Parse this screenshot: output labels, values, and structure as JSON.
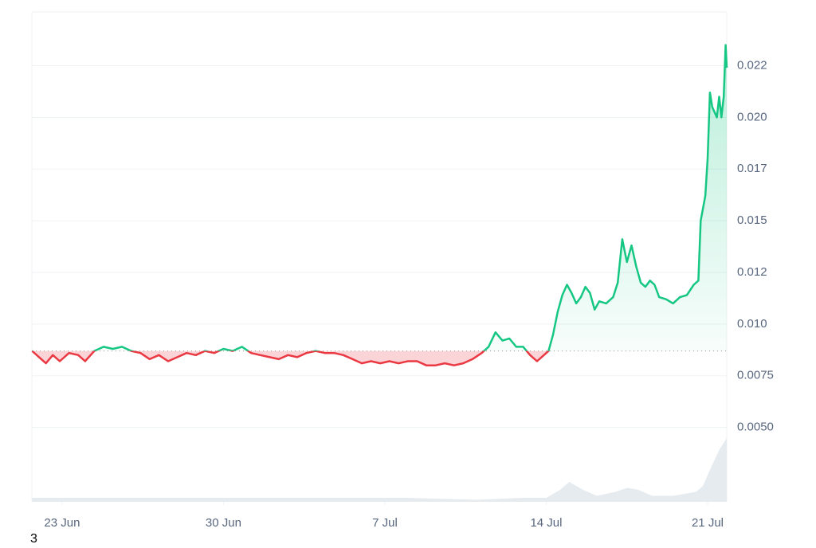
{
  "chart_data": {
    "type": "line",
    "x": [
      -1.3,
      -1.0,
      -0.7,
      -0.4,
      -0.1,
      0.3,
      0.7,
      1.0,
      1.4,
      1.8,
      2.2,
      2.6,
      3.0,
      3.4,
      3.8,
      4.2,
      4.6,
      5.0,
      5.4,
      5.8,
      6.2,
      6.6,
      7.0,
      7.4,
      7.8,
      8.2,
      8.6,
      9.0,
      9.4,
      9.8,
      10.2,
      10.6,
      11.0,
      11.4,
      11.8,
      12.2,
      12.6,
      13.0,
      13.4,
      13.8,
      14.2,
      14.6,
      15.0,
      15.4,
      15.8,
      16.2,
      16.6,
      17.0,
      17.4,
      17.8,
      18.2,
      18.5,
      18.8,
      19.1,
      19.4,
      19.7,
      20.0,
      20.3,
      20.6,
      20.9,
      21.1,
      21.3,
      21.5,
      21.7,
      21.9,
      22.1,
      22.3,
      22.5,
      22.7,
      22.9,
      23.1,
      23.3,
      23.6,
      23.9,
      24.1,
      24.3,
      24.5,
      24.7,
      24.9,
      25.1,
      25.3,
      25.5,
      25.7,
      25.9,
      26.2,
      26.5,
      26.8,
      27.1,
      27.4,
      27.6,
      27.7,
      27.9,
      28.0,
      28.1,
      28.2,
      28.4,
      28.5,
      28.6,
      28.7,
      28.78,
      28.83
    ],
    "series": [
      {
        "colors": {
          "up": "#16c784",
          "down": "#ea3943"
        },
        "values": [
          0.0087,
          0.0084,
          0.0081,
          0.0085,
          0.0082,
          0.0086,
          0.0085,
          0.0082,
          0.0087,
          0.0089,
          0.0088,
          0.0089,
          0.0087,
          0.0086,
          0.0083,
          0.0085,
          0.0082,
          0.0084,
          0.0086,
          0.0085,
          0.0087,
          0.0086,
          0.0088,
          0.0087,
          0.0089,
          0.0086,
          0.0085,
          0.0084,
          0.0083,
          0.0085,
          0.0084,
          0.0086,
          0.0087,
          0.0086,
          0.0086,
          0.0085,
          0.0083,
          0.0081,
          0.0082,
          0.0081,
          0.0082,
          0.0081,
          0.0082,
          0.0082,
          0.008,
          0.008,
          0.0081,
          0.008,
          0.0081,
          0.0083,
          0.0086,
          0.0089,
          0.0096,
          0.0092,
          0.0093,
          0.0089,
          0.0089,
          0.0085,
          0.0082,
          0.0085,
          0.0087,
          0.0095,
          0.0106,
          0.0114,
          0.0119,
          0.0115,
          0.011,
          0.0113,
          0.0118,
          0.0115,
          0.0107,
          0.0111,
          0.011,
          0.0113,
          0.012,
          0.0141,
          0.013,
          0.0138,
          0.0128,
          0.012,
          0.0118,
          0.0121,
          0.0119,
          0.0113,
          0.0112,
          0.011,
          0.0113,
          0.0114,
          0.0119,
          0.0121,
          0.015,
          0.0162,
          0.018,
          0.0212,
          0.0205,
          0.02,
          0.021,
          0.02,
          0.021,
          0.0235,
          0.0224
        ]
      }
    ],
    "baseline": 0.0087,
    "volume": {
      "x": [
        -1.3,
        5,
        10,
        15,
        18,
        20,
        21,
        21.6,
        22,
        22.6,
        23.2,
        24,
        24.5,
        25,
        25.6,
        26.5,
        27.5,
        27.8,
        28.1,
        28.5,
        28.83
      ],
      "values": [
        2,
        2,
        2,
        2,
        1,
        2,
        2,
        6,
        10,
        6,
        3,
        5,
        7,
        6,
        3,
        3,
        5,
        8,
        16,
        26,
        32
      ],
      "ylim": [
        0,
        40
      ],
      "color": "#e6ebf0"
    },
    "xlim": [
      -1.31,
      28.83
    ],
    "xticks": [
      {
        "value": 0,
        "label": "23 Jun"
      },
      {
        "value": 7,
        "label": "30 Jun"
      },
      {
        "value": 14,
        "label": "7 Jul"
      },
      {
        "value": 21,
        "label": "14 Jul"
      },
      {
        "value": 28,
        "label": "21 Jul"
      }
    ],
    "ylim": [
      0.0014,
      0.0251
    ],
    "yticks": [
      {
        "value": 0.005,
        "label": "0.0050"
      },
      0.0075,
      {
        "value": 0.01,
        "label": "0.010"
      },
      {
        "value": 0.0125,
        "label": "0.012"
      },
      {
        "value": 0.015,
        "label": "0.015"
      },
      {
        "value": 0.0175,
        "label": "0.017"
      },
      {
        "value": 0.02,
        "label": "0.020"
      },
      {
        "value": 0.0225,
        "label": "0.022"
      }
    ],
    "grid": true,
    "footnote": "3"
  }
}
